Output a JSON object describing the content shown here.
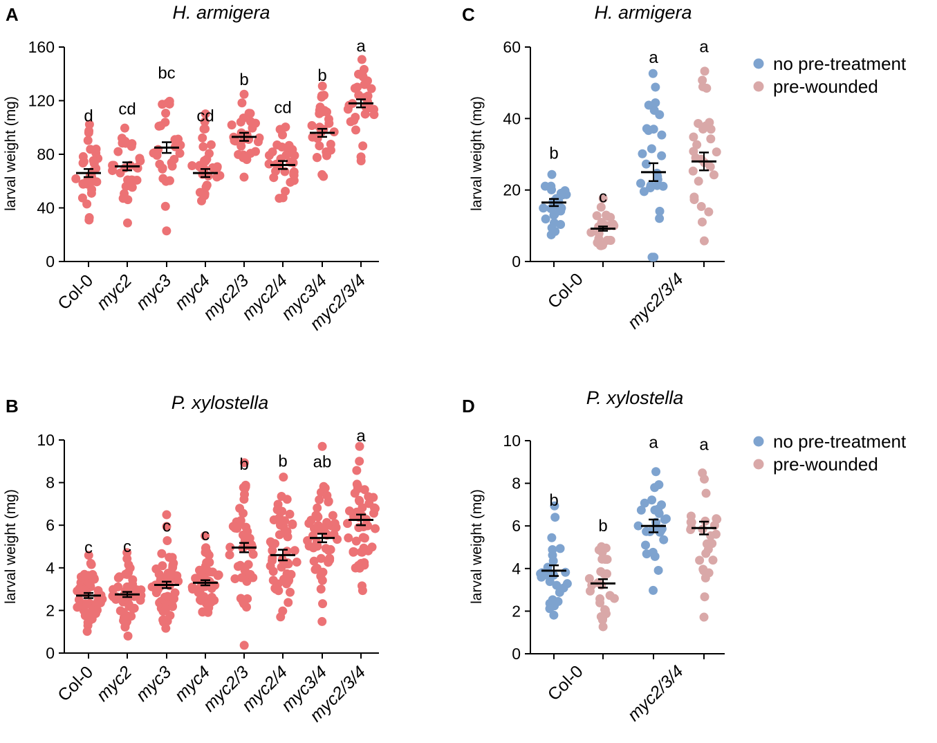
{
  "colors": {
    "red": "#ec7275",
    "blue": "#7ea3cf",
    "pink": "#d9a8a8",
    "axis": "#000000"
  },
  "chart_data": [
    {
      "panel_label": "A",
      "type": "scatter",
      "title": "H. armigera",
      "ylabel": "larval weight (mg)",
      "ylim": [
        0,
        160
      ],
      "yticks": [
        "0",
        "40",
        "80",
        "120",
        "160"
      ],
      "categories": [
        "Col-0",
        "myc2",
        "myc3",
        "myc4",
        "myc2/3",
        "myc2/4",
        "myc3/4",
        "myc2/3/4"
      ],
      "series": [
        {
          "name": "larval weight",
          "color_key": "red",
          "means": [
            66,
            71,
            85,
            66,
            93,
            72,
            96,
            118
          ],
          "sem": [
            3,
            3,
            4,
            3,
            3,
            3,
            3,
            3
          ],
          "letters": [
            "d",
            "cd",
            "bc",
            "cd",
            "b",
            "cd",
            "b",
            "a"
          ]
        }
      ]
    },
    {
      "panel_label": "B",
      "type": "scatter",
      "title": "P. xylostella",
      "ylabel": "larval weight (mg)",
      "ylim": [
        0,
        10
      ],
      "yticks": [
        "0",
        "2",
        "4",
        "6",
        "8",
        "10"
      ],
      "categories": [
        "Col-0",
        "myc2",
        "myc3",
        "myc4",
        "myc2/3",
        "myc2/4",
        "myc3/4",
        "myc2/3/4"
      ],
      "series": [
        {
          "name": "larval weight",
          "color_key": "red",
          "means": [
            2.7,
            2.75,
            3.2,
            3.3,
            4.95,
            4.6,
            5.4,
            6.25
          ],
          "sem": [
            0.12,
            0.12,
            0.15,
            0.12,
            0.22,
            0.25,
            0.2,
            0.25
          ],
          "letters": [
            "c",
            "c",
            "c",
            "c",
            "b",
            "b",
            "ab",
            "a"
          ]
        }
      ]
    },
    {
      "panel_label": "C",
      "type": "scatter",
      "title": "H. armigera",
      "ylabel": "larval weight (mg)",
      "ylim": [
        0,
        60
      ],
      "yticks": [
        "0",
        "20",
        "40",
        "60"
      ],
      "categories": [
        "Col-0",
        "myc2/3/4"
      ],
      "legend": [
        "no pre-treatment",
        "pre-wounded"
      ],
      "series": [
        {
          "name": "no pre-treatment",
          "color_key": "blue",
          "means": [
            16.5,
            25
          ],
          "sem": [
            1,
            2.5
          ],
          "letters": [
            "b",
            "a"
          ]
        },
        {
          "name": "pre-wounded",
          "color_key": "pink",
          "means": [
            9.2,
            28
          ],
          "sem": [
            0.6,
            2.5
          ],
          "letters": [
            "c",
            "a"
          ]
        }
      ]
    },
    {
      "panel_label": "D",
      "type": "scatter",
      "title": "P. xylostella",
      "ylabel": "larval weight (mg)",
      "ylim": [
        0,
        10
      ],
      "yticks": [
        "0",
        "2",
        "4",
        "6",
        "8",
        "10"
      ],
      "categories": [
        "Col-0",
        "myc2/3/4"
      ],
      "legend": [
        "no pre-treatment",
        "pre-wounded"
      ],
      "series": [
        {
          "name": "no pre-treatment",
          "color_key": "blue",
          "means": [
            3.9,
            6.0
          ],
          "sem": [
            0.25,
            0.3
          ],
          "letters": [
            "b",
            "a"
          ]
        },
        {
          "name": "pre-wounded",
          "color_key": "pink",
          "means": [
            3.3,
            5.9
          ],
          "sem": [
            0.2,
            0.3
          ],
          "letters": [
            "b",
            "a"
          ]
        }
      ]
    }
  ]
}
